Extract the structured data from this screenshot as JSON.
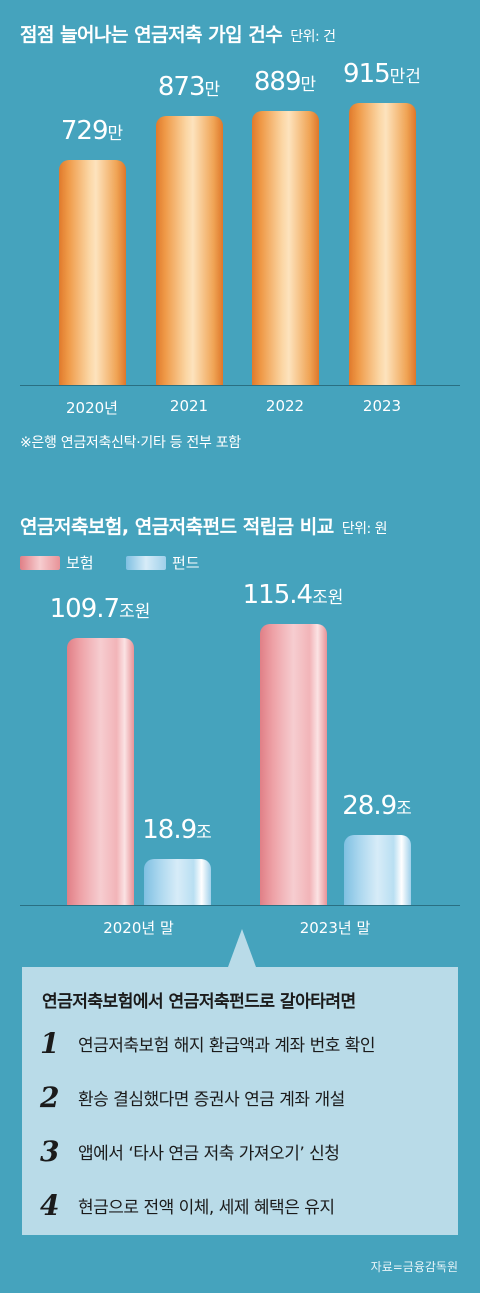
{
  "chart_data": [
    {
      "type": "bar",
      "title": "점점 늘어나는 연금저축 가입 건수",
      "unit": "단위: 건",
      "categories": [
        "2020년",
        "2021",
        "2022",
        "2023"
      ],
      "values": [
        729,
        873,
        889,
        915
      ],
      "value_labels": [
        {
          "num": "729",
          "suffix": "만"
        },
        {
          "num": "873",
          "suffix": "만"
        },
        {
          "num": "889",
          "suffix": "만"
        },
        {
          "num": "915",
          "suffix": "만건"
        }
      ],
      "note": "※은행 연금저축신탁·기타 등 전부 포함",
      "color": "#ef9a48"
    },
    {
      "type": "bar",
      "title": "연금저축보험, 연금저축펀드 적립금 비교",
      "unit": "단위: 원",
      "categories": [
        "2020년 말",
        "2023년 말"
      ],
      "series": [
        {
          "name": "보험",
          "values": [
            109.7,
            115.4
          ],
          "labels": [
            {
              "num": "109.7",
              "suffix": "조원"
            },
            {
              "num": "115.4",
              "suffix": "조원"
            }
          ],
          "color": "#eea2a7"
        },
        {
          "name": "펀드",
          "values": [
            18.9,
            28.9
          ],
          "labels": [
            {
              "num": "18.9",
              "suffix": "조"
            },
            {
              "num": "28.9",
              "suffix": "조"
            }
          ],
          "color": "#a9d6ee"
        }
      ]
    }
  ],
  "info_box": {
    "title": "연금저축보험에서 연금저축펀드로 갈아타려면",
    "steps": [
      {
        "num": "1",
        "text": "연금저축보험 해지 환급액과 계좌 번호 확인"
      },
      {
        "num": "2",
        "text": "환승 결심했다면 증권사 연금 계좌 개설"
      },
      {
        "num": "3",
        "text": "앱에서 ‘타사 연금 저축 가져오기’ 신청"
      },
      {
        "num": "4",
        "text": "현금으로 전액 이체, 세제 혜택은 유지"
      }
    ]
  },
  "source": "자료=금융감독원"
}
